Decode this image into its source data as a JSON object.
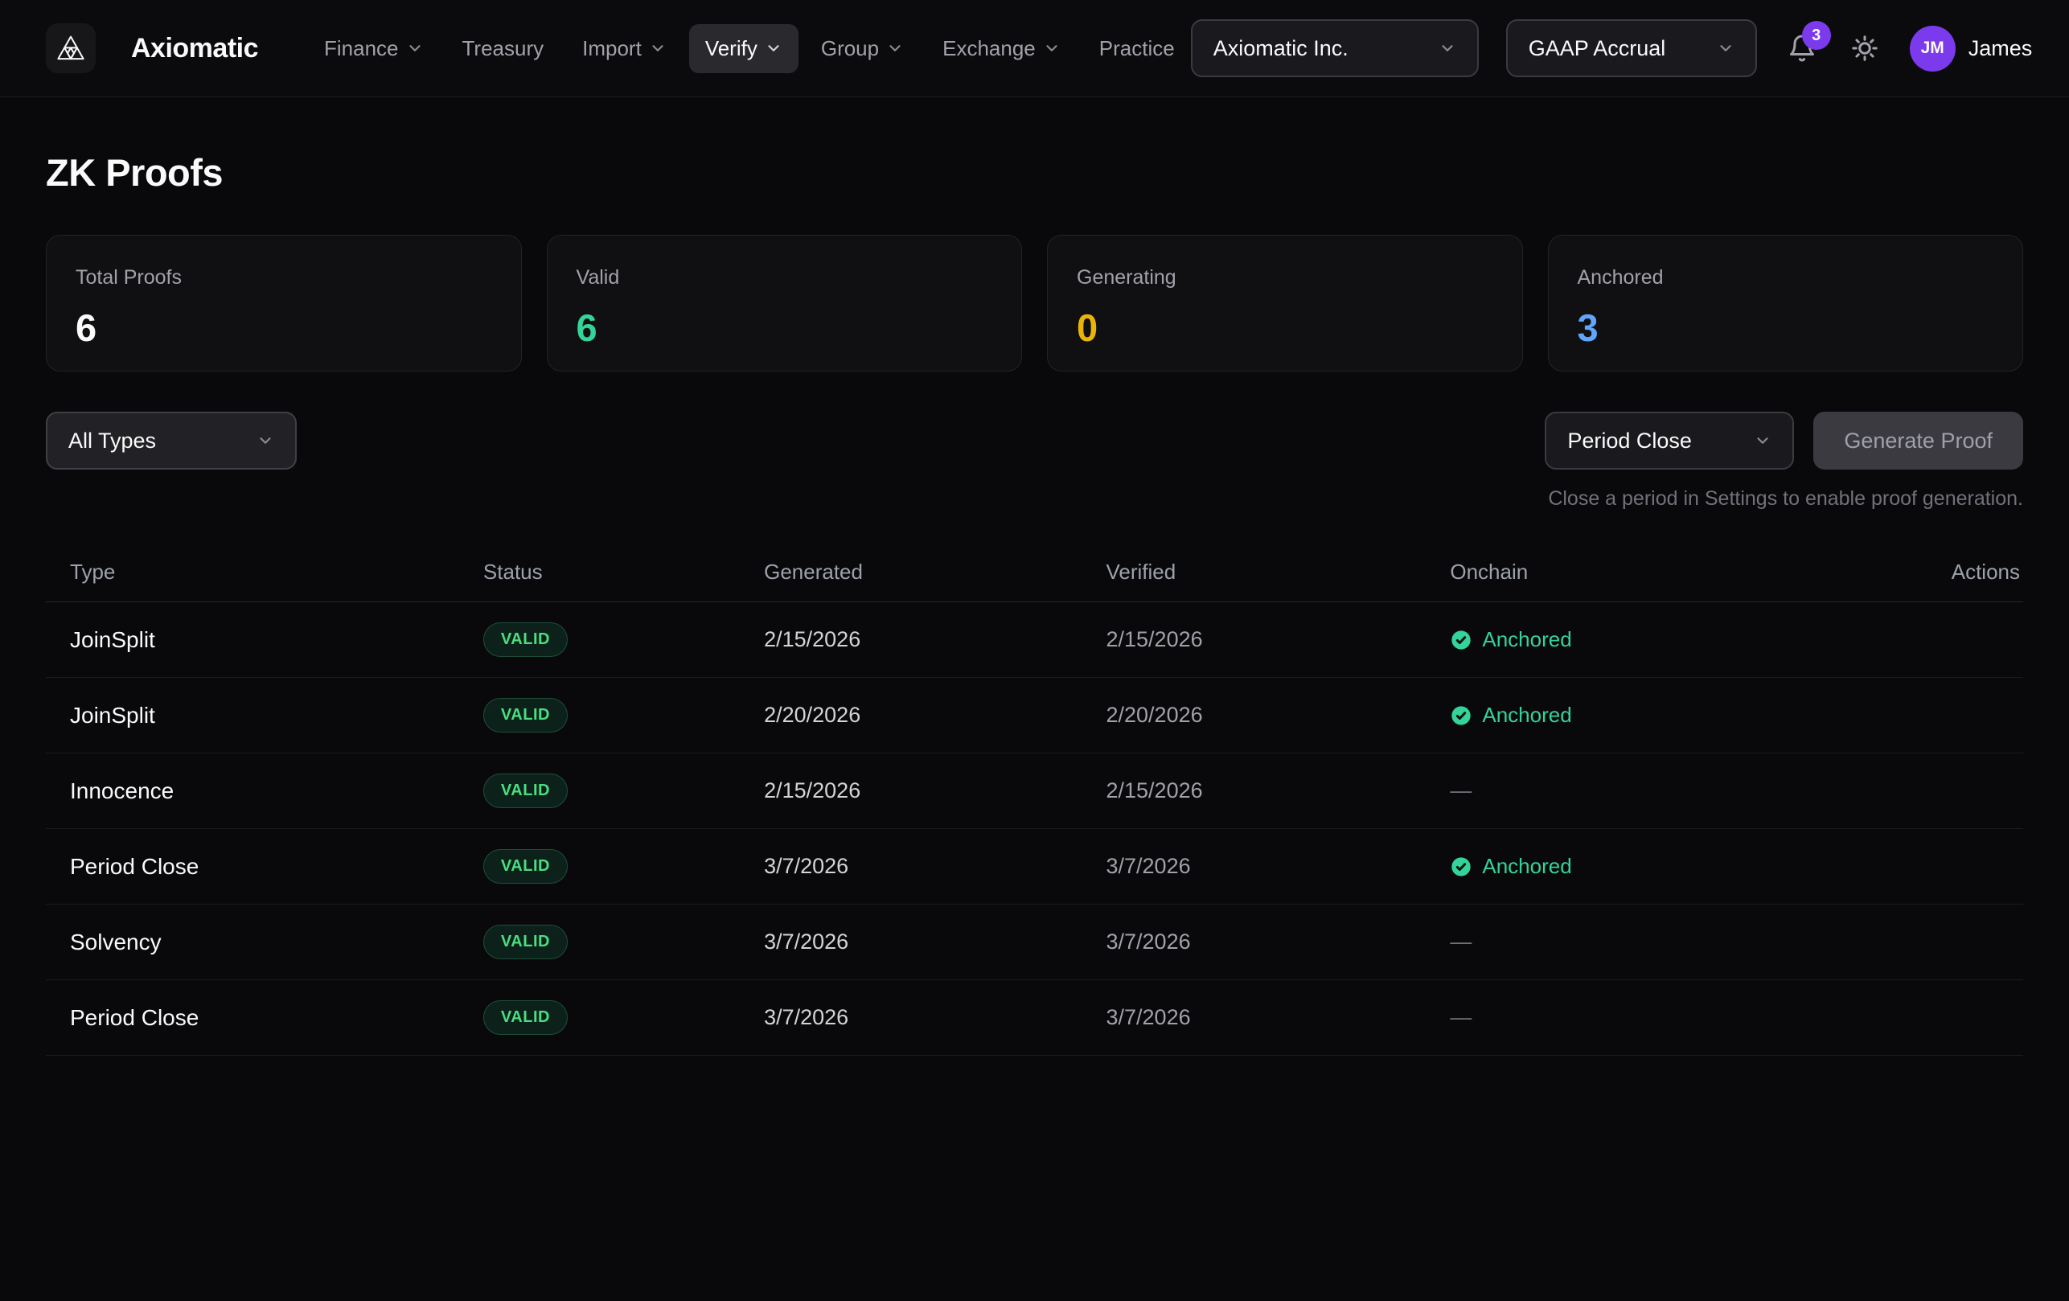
{
  "brand": {
    "name": "Axiomatic"
  },
  "nav": {
    "items": [
      {
        "label": "Finance",
        "chevron": true,
        "active": false
      },
      {
        "label": "Treasury",
        "chevron": false,
        "active": false
      },
      {
        "label": "Import",
        "chevron": true,
        "active": false
      },
      {
        "label": "Verify",
        "chevron": true,
        "active": true
      },
      {
        "label": "Group",
        "chevron": true,
        "active": false
      },
      {
        "label": "Exchange",
        "chevron": true,
        "active": false
      },
      {
        "label": "Practice",
        "chevron": false,
        "active": false
      }
    ]
  },
  "topbar": {
    "entity_select": "Axiomatic Inc.",
    "basis_select": "GAAP Accrual",
    "notification_count": "3",
    "avatar_initials": "JM",
    "user_name": "James"
  },
  "page": {
    "title": "ZK Proofs"
  },
  "stats": [
    {
      "label": "Total Proofs",
      "value": "6",
      "color": "#fafafa"
    },
    {
      "label": "Valid",
      "value": "6",
      "color": "#34d399"
    },
    {
      "label": "Generating",
      "value": "0",
      "color": "#eab308"
    },
    {
      "label": "Anchored",
      "value": "3",
      "color": "#60a5fa"
    }
  ],
  "filters": {
    "type_filter_value": "All Types",
    "proof_type_value": "Period Close",
    "generate_button_label": "Generate Proof",
    "helper_text": "Close a period in Settings to enable proof generation."
  },
  "table": {
    "columns": [
      "Type",
      "Status",
      "Generated",
      "Verified",
      "Onchain",
      "Actions"
    ],
    "onchain_anchored_label": "Anchored",
    "onchain_empty": "—",
    "rows": [
      {
        "type": "JoinSplit",
        "status": "VALID",
        "generated": "2/15/2026",
        "verified": "2/15/2026",
        "anchored": true
      },
      {
        "type": "JoinSplit",
        "status": "VALID",
        "generated": "2/20/2026",
        "verified": "2/20/2026",
        "anchored": true
      },
      {
        "type": "Innocence",
        "status": "VALID",
        "generated": "2/15/2026",
        "verified": "2/15/2026",
        "anchored": false
      },
      {
        "type": "Period Close",
        "status": "VALID",
        "generated": "3/7/2026",
        "verified": "3/7/2026",
        "anchored": true
      },
      {
        "type": "Solvency",
        "status": "VALID",
        "generated": "3/7/2026",
        "verified": "3/7/2026",
        "anchored": false
      },
      {
        "type": "Period Close",
        "status": "VALID",
        "generated": "3/7/2026",
        "verified": "3/7/2026",
        "anchored": false
      }
    ]
  }
}
